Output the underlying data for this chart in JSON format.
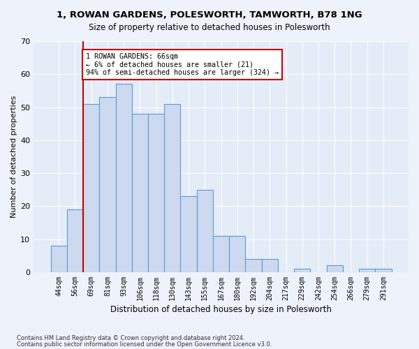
{
  "title": "1, ROWAN GARDENS, POLESWORTH, TAMWORTH, B78 1NG",
  "subtitle": "Size of property relative to detached houses in Polesworth",
  "xlabel": "Distribution of detached houses by size in Polesworth",
  "ylabel": "Number of detached properties",
  "bar_values": [
    8,
    19,
    51,
    53,
    57,
    48,
    48,
    51,
    23,
    25,
    11,
    11,
    4,
    4,
    0,
    1,
    0,
    2,
    0,
    1,
    1
  ],
  "bin_labels": [
    "44sqm",
    "56sqm",
    "69sqm",
    "81sqm",
    "93sqm",
    "106sqm",
    "118sqm",
    "130sqm",
    "143sqm",
    "155sqm",
    "167sqm",
    "180sqm",
    "192sqm",
    "204sqm",
    "217sqm",
    "229sqm",
    "242sqm",
    "254sqm",
    "266sqm",
    "279sqm",
    "291sqm"
  ],
  "bar_color": "#ccd9ee",
  "bar_edge_color": "#5b9bd5",
  "vline_color": "#cc0000",
  "annotation_text": "1 ROWAN GARDENS: 66sqm\n← 6% of detached houses are smaller (21)\n94% of semi-detached houses are larger (324) →",
  "annotation_box_color": "#ffffff",
  "annotation_box_edge": "#cc0000",
  "ylim": [
    0,
    70
  ],
  "yticks": [
    0,
    10,
    20,
    30,
    40,
    50,
    60,
    70
  ],
  "footnote1": "Contains HM Land Registry data © Crown copyright and database right 2024.",
  "footnote2": "Contains public sector information licensed under the Open Government Licence v3.0.",
  "bg_color": "#eef2fa",
  "plot_bg_color": "#e4ecf7"
}
